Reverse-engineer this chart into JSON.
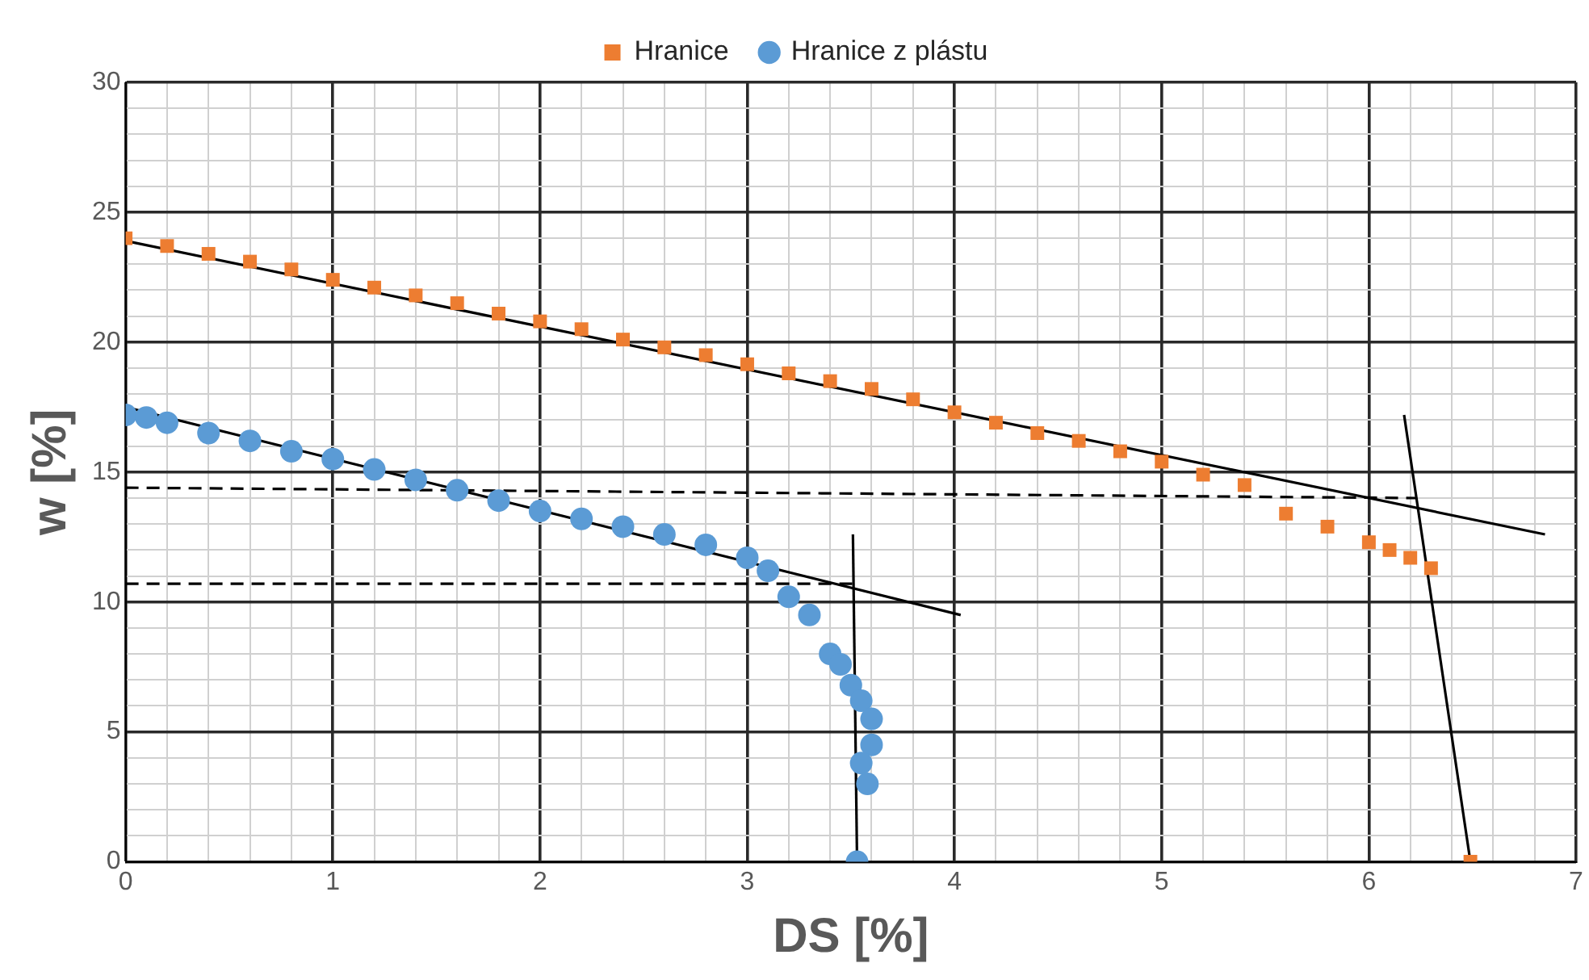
{
  "chart_data": {
    "type": "scatter",
    "xlabel": "DS [%]",
    "ylabel": "w [%]",
    "legend": "top",
    "grid": true,
    "xlim": [
      0,
      7
    ],
    "ylim": [
      0,
      30
    ],
    "xticks": [
      0,
      {
        "value": 0.2,
        "label": null
      },
      {
        "value": 0.4,
        "label": null
      },
      {
        "value": 0.6,
        "label": null
      },
      {
        "value": 0.8,
        "label": null
      },
      1,
      {
        "value": 1.2,
        "label": null
      },
      {
        "value": 1.4,
        "label": null
      },
      {
        "value": 1.6,
        "label": null
      },
      {
        "value": 1.8,
        "label": null
      },
      2,
      {
        "value": 2.2,
        "label": null
      },
      {
        "value": 2.4,
        "label": null
      },
      {
        "value": 2.6,
        "label": null
      },
      {
        "value": 2.8,
        "label": null
      },
      3,
      {
        "value": 3.2,
        "label": null
      },
      {
        "value": 3.4,
        "label": null
      },
      {
        "value": 3.6,
        "label": null
      },
      {
        "value": 3.8,
        "label": null
      },
      4,
      {
        "value": 4.2,
        "label": null
      },
      {
        "value": 4.4,
        "label": null
      },
      {
        "value": 4.6,
        "label": null
      },
      {
        "value": 4.8,
        "label": null
      },
      5,
      {
        "value": 5.2,
        "label": null
      },
      {
        "value": 5.4,
        "label": null
      },
      {
        "value": 5.6,
        "label": null
      },
      {
        "value": 5.8,
        "label": null
      },
      6,
      {
        "value": 6.2,
        "label": null
      },
      {
        "value": 6.4,
        "label": null
      },
      {
        "value": 6.6,
        "label": null
      },
      {
        "value": 6.8,
        "label": null
      },
      7
    ],
    "yticks": [
      0,
      {
        "value": 1,
        "label": null
      },
      {
        "value": 2,
        "label": null
      },
      {
        "value": 3,
        "label": null
      },
      {
        "value": 4,
        "label": null
      },
      5,
      {
        "value": 6,
        "label": null
      },
      {
        "value": 7,
        "label": null
      },
      {
        "value": 8,
        "label": null
      },
      {
        "value": 9,
        "label": null
      },
      10,
      {
        "value": 11,
        "label": null
      },
      {
        "value": 12,
        "label": null
      },
      {
        "value": 13,
        "label": null
      },
      {
        "value": 14,
        "label": null
      },
      15,
      {
        "value": 16,
        "label": null
      },
      {
        "value": 17,
        "label": null
      },
      {
        "value": 18,
        "label": null
      },
      {
        "value": 19,
        "label": null
      },
      20,
      {
        "value": 21,
        "label": null
      },
      {
        "value": 22,
        "label": null
      },
      {
        "value": 23,
        "label": null
      },
      {
        "value": 24,
        "label": null
      },
      25,
      {
        "value": 26,
        "label": null
      },
      {
        "value": 27,
        "label": null
      },
      {
        "value": 28,
        "label": null
      },
      {
        "value": 29,
        "label": null
      },
      30
    ],
    "series": [
      {
        "name": "Hranice",
        "type": "scatter",
        "marker": "square",
        "color": "#ed7d31",
        "x": [
          0,
          0.2,
          0.4,
          0.6,
          0.8,
          1.0,
          1.2,
          1.4,
          1.6,
          1.8,
          2.0,
          2.2,
          2.4,
          2.6,
          2.8,
          3.0,
          3.2,
          3.4,
          3.6,
          3.8,
          4.0,
          4.2,
          4.4,
          4.6,
          4.8,
          5.0,
          5.2,
          5.4,
          5.6,
          5.8,
          6.0,
          6.1,
          6.2,
          6.3,
          6.49
        ],
        "values": [
          24.0,
          23.7,
          23.4,
          23.1,
          22.8,
          22.4,
          22.1,
          21.8,
          21.5,
          21.1,
          20.8,
          20.5,
          20.1,
          19.8,
          19.5,
          19.15,
          18.8,
          18.5,
          18.2,
          17.8,
          17.3,
          16.9,
          16.5,
          16.2,
          15.8,
          15.4,
          14.9,
          14.5,
          13.4,
          12.9,
          12.3,
          12.0,
          11.7,
          11.3,
          0
        ]
      },
      {
        "name": "Hranice z plástu",
        "type": "scatter",
        "marker": "circle",
        "color": "#5b9bd5",
        "x": [
          0,
          0.1,
          0.2,
          0.4,
          0.6,
          0.8,
          1.0,
          1.2,
          1.4,
          1.6,
          1.8,
          2.0,
          2.2,
          2.4,
          2.6,
          2.8,
          3.0,
          3.1,
          3.2,
          3.3,
          3.4,
          3.45,
          3.5,
          3.55,
          3.6,
          3.6,
          3.55,
          3.58,
          3.53
        ],
        "values": [
          17.2,
          17.1,
          16.9,
          16.5,
          16.2,
          15.8,
          15.5,
          15.1,
          14.7,
          14.3,
          13.9,
          13.5,
          13.2,
          12.9,
          12.6,
          12.2,
          11.7,
          11.2,
          10.2,
          9.5,
          8.0,
          7.6,
          6.8,
          6.2,
          5.5,
          4.5,
          3.8,
          3.0,
          0
        ]
      },
      {
        "type": "line",
        "color": "#000000",
        "line_style": "solid",
        "x": [
          0,
          6.85
        ],
        "values": [
          23.9,
          12.6
        ]
      },
      {
        "type": "line",
        "color": "#000000",
        "line_style": "solid",
        "x": [
          0,
          4.03
        ],
        "values": [
          17.5,
          9.5
        ]
      },
      {
        "type": "line",
        "color": "#000000",
        "line_style": "solid",
        "x": [
          6.17,
          6.49
        ],
        "values": [
          17.2,
          0
        ]
      },
      {
        "type": "line",
        "color": "#000000",
        "line_style": "solid",
        "x": [
          3.51,
          3.53
        ],
        "values": [
          12.6,
          0
        ]
      },
      {
        "type": "line",
        "color": "#000000",
        "line_style": "dashed",
        "x": [
          0,
          6.23
        ],
        "values": [
          14.4,
          14.0
        ]
      },
      {
        "type": "line",
        "color": "#000000",
        "line_style": "dashed",
        "x": [
          0,
          3.54
        ],
        "values": [
          10.7,
          10.7
        ]
      }
    ]
  }
}
